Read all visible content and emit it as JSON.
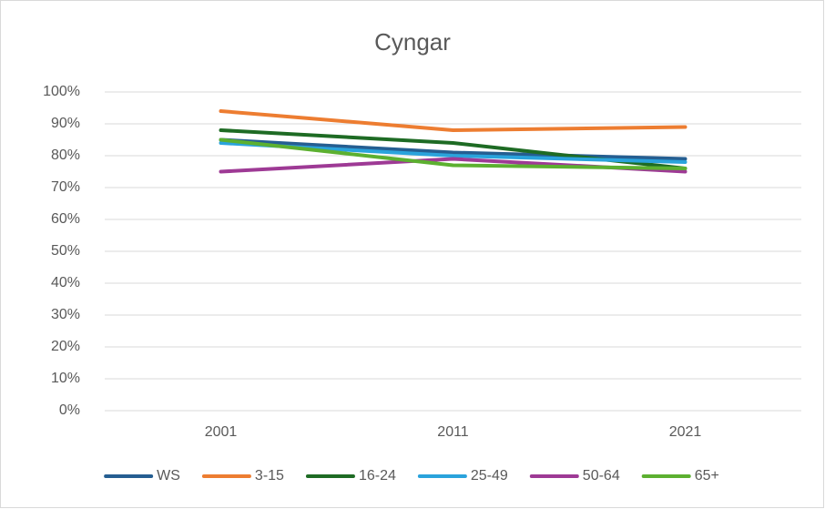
{
  "chart_data": {
    "type": "line",
    "title": "Cyngar",
    "categories": [
      "2001",
      "2011",
      "2021"
    ],
    "series": [
      {
        "name": "WS",
        "color": "#255e91",
        "values": [
          85,
          81,
          79
        ]
      },
      {
        "name": "3-15",
        "color": "#ed7d31",
        "values": [
          94,
          88,
          89
        ]
      },
      {
        "name": "16-24",
        "color": "#1e6b24",
        "values": [
          88,
          84,
          76
        ]
      },
      {
        "name": "25-49",
        "color": "#2aa3dc",
        "values": [
          84,
          80,
          78
        ]
      },
      {
        "name": "50-64",
        "color": "#9e3a95",
        "values": [
          75,
          79,
          75
        ]
      },
      {
        "name": "65+",
        "color": "#5cb030",
        "values": [
          85,
          77,
          76
        ]
      }
    ],
    "ylim": [
      0,
      100
    ],
    "yticks": [
      {
        "value": 0,
        "label": "0%"
      },
      {
        "value": 10,
        "label": "10%"
      },
      {
        "value": 20,
        "label": "20%"
      },
      {
        "value": 30,
        "label": "30%"
      },
      {
        "value": 40,
        "label": "40%"
      },
      {
        "value": 50,
        "label": "50%"
      },
      {
        "value": 60,
        "label": "60%"
      },
      {
        "value": 70,
        "label": "70%"
      },
      {
        "value": 80,
        "label": "80%"
      },
      {
        "value": 90,
        "label": "90%"
      },
      {
        "value": 100,
        "label": "100%"
      }
    ],
    "grid": true,
    "legend": "bottom"
  }
}
